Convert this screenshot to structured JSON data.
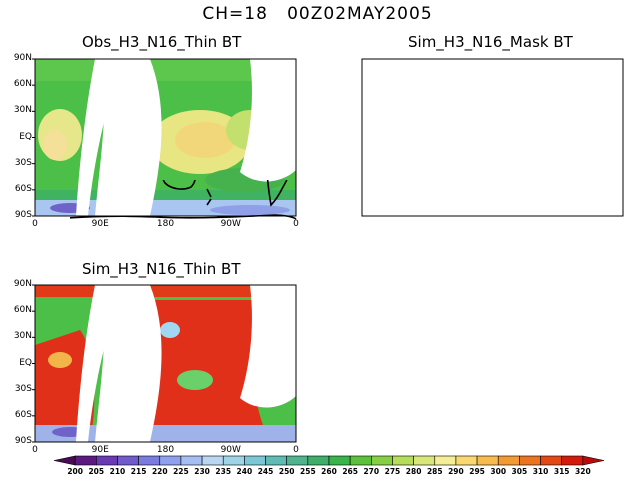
{
  "title": "CH=18   00Z02MAY2005",
  "panels": [
    {
      "id": "obs",
      "title": "Obs_H3_N16_Thin BT",
      "kind": "data"
    },
    {
      "id": "mask",
      "title": "Sim_H3_N16_Mask BT",
      "kind": "empty"
    },
    {
      "id": "sim",
      "title": "Sim_H3_N16_Thin BT",
      "kind": "data"
    }
  ],
  "lat_ticks": [
    "90N",
    "60N",
    "30N",
    "EQ",
    "30S",
    "60S",
    "90S"
  ],
  "lon_ticks": [
    "0",
    "90E",
    "180",
    "90W",
    "0"
  ],
  "colorbar": {
    "labels": [
      "200",
      "205",
      "210",
      "215",
      "220",
      "225",
      "230",
      "235",
      "240",
      "245",
      "250",
      "255",
      "260",
      "265",
      "270",
      "275",
      "280",
      "285",
      "290",
      "295",
      "300",
      "305",
      "310",
      "315",
      "320"
    ],
    "colors": [
      "#4b0a55",
      "#5c1a80",
      "#6a3ab5",
      "#6f5bcb",
      "#7b7ce0",
      "#8fa0ee",
      "#a6bff2",
      "#b9d6f3",
      "#9fd3e6",
      "#7cc7d6",
      "#5fbcb5",
      "#4fb38d",
      "#3fae6a",
      "#39b44a",
      "#5cc23c",
      "#86cf45",
      "#b5dc5a",
      "#d9e77a",
      "#f4ee96",
      "#f9d870",
      "#f8bb4e",
      "#f39a32",
      "#ec7320",
      "#e34815",
      "#d41a0d",
      "#b80b0b"
    ]
  }
}
